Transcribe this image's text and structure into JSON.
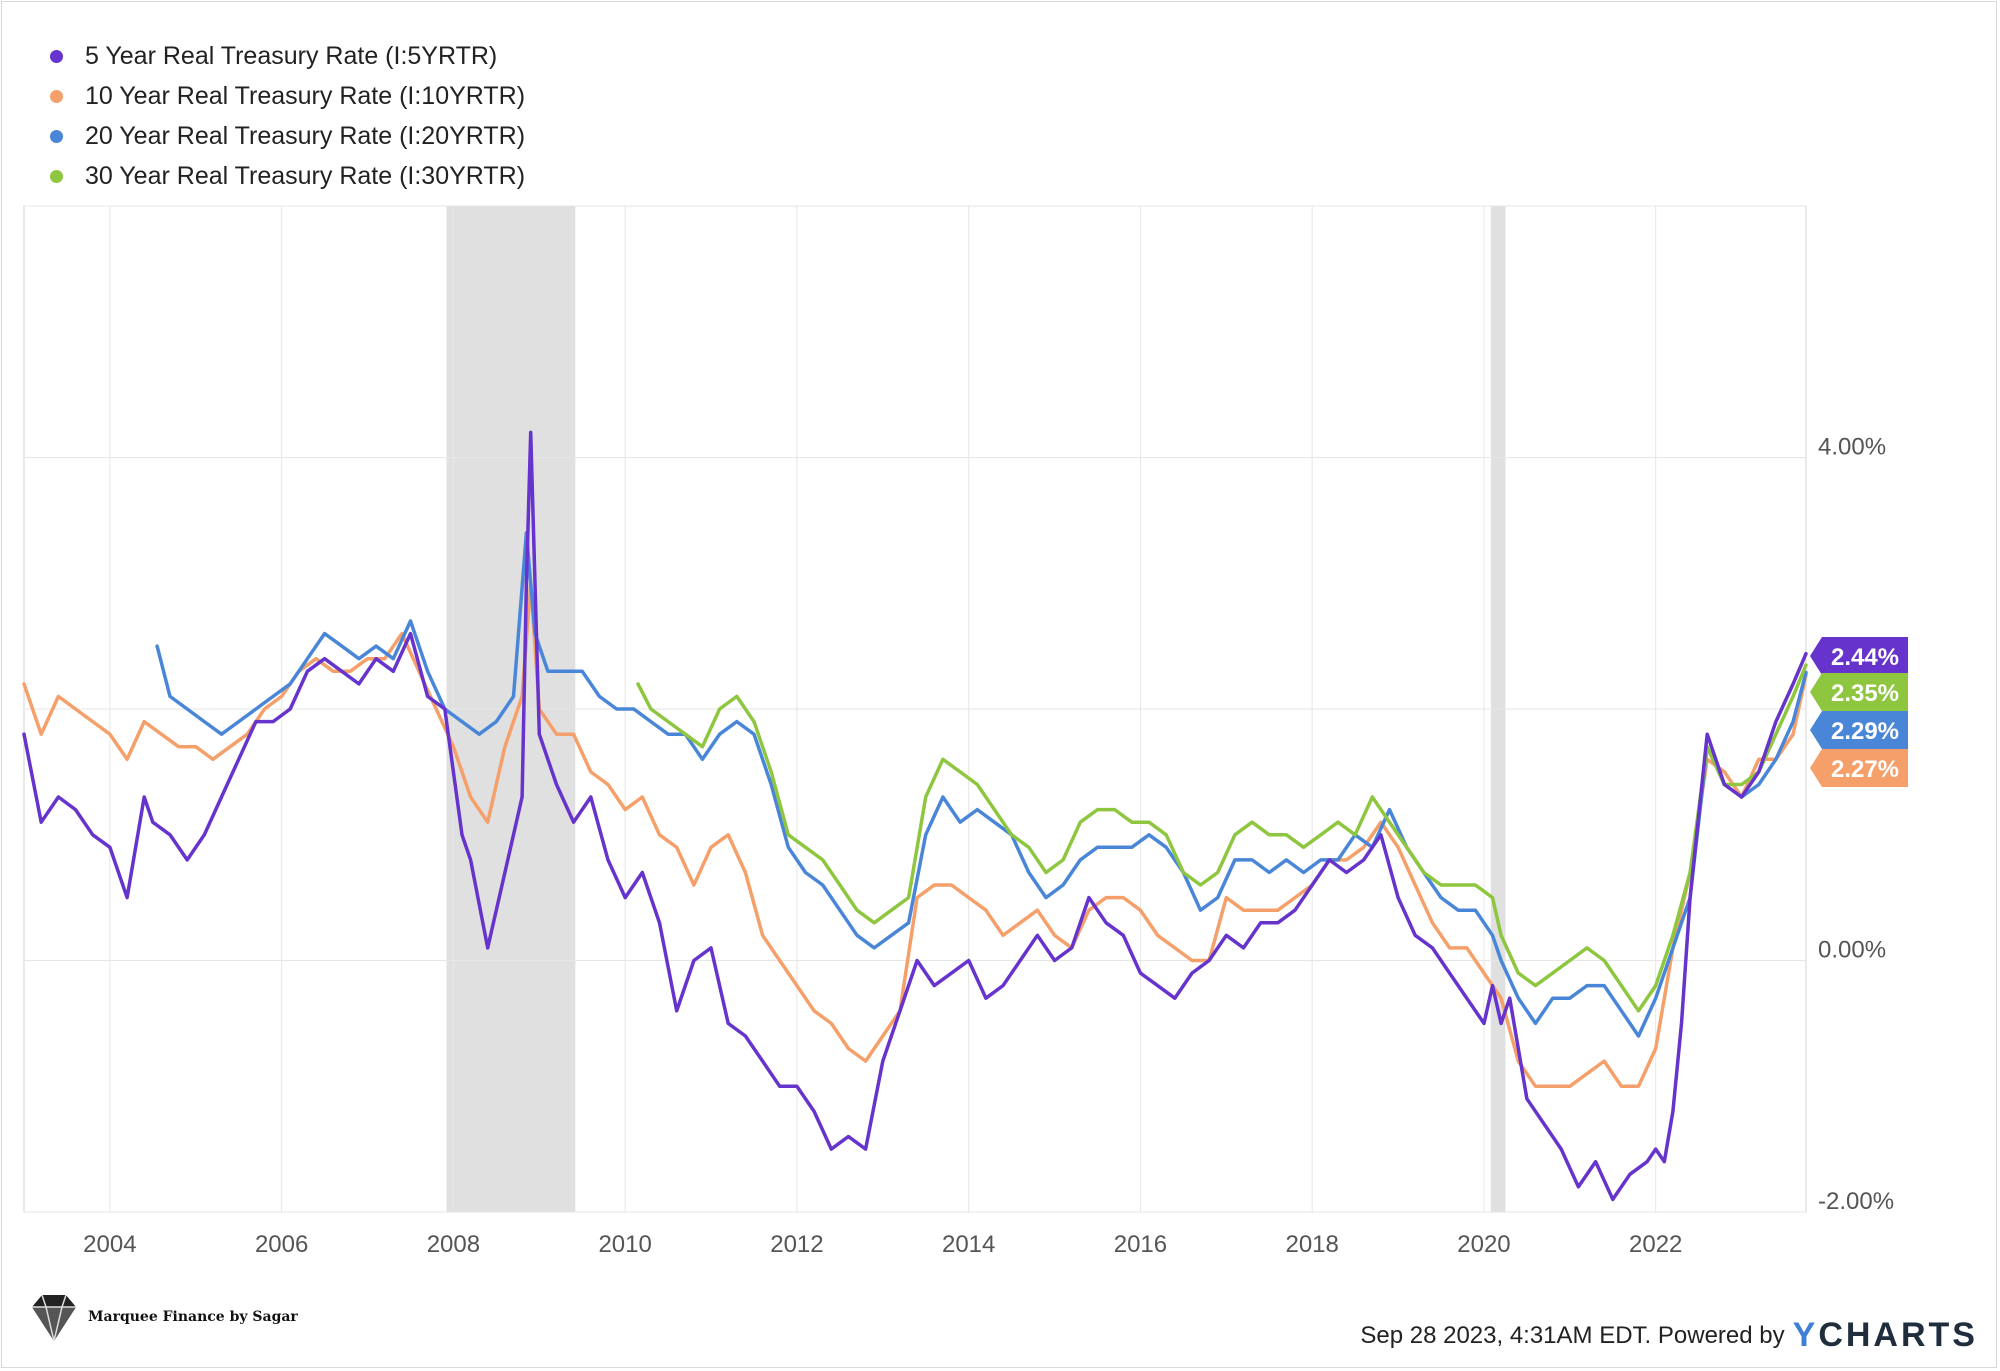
{
  "legend": [
    {
      "label": "5 Year Real Treasury Rate (I:5YRTR)",
      "color": "#6633cc"
    },
    {
      "label": "10 Year Real Treasury Rate (I:10YRTR)",
      "color": "#f5a06a"
    },
    {
      "label": "20 Year Real Treasury Rate (I:20YRTR)",
      "color": "#4a86d8"
    },
    {
      "label": "30 Year Real Treasury Rate (I:30YRTR)",
      "color": "#8ec63f"
    }
  ],
  "footer": {
    "timestamp": "Sep 28 2023, 4:31AM EDT.",
    "powered": "Powered by",
    "brand_y": "Y",
    "brand_rest": "CHARTS"
  },
  "branding": {
    "text": "Marquee Finance by Sagar"
  },
  "chart_data": {
    "type": "line",
    "title": "",
    "xlabel": "",
    "ylabel": "",
    "xlim": [
      2003.0,
      2023.75
    ],
    "ylim": [
      -2.0,
      6.0
    ],
    "x_ticks": [
      2004,
      2006,
      2008,
      2010,
      2012,
      2014,
      2016,
      2018,
      2020,
      2022
    ],
    "x_tick_labels": [
      "2004",
      "2006",
      "2008",
      "2010",
      "2012",
      "2014",
      "2016",
      "2018",
      "2020",
      "2022"
    ],
    "y_ticks": [
      4,
      0,
      -2
    ],
    "y_tick_labels": [
      "4.00%",
      "0.00%",
      "-2.00%"
    ],
    "y_gridlines": [
      6,
      4,
      2,
      0,
      -2
    ],
    "recessions": [
      [
        2007.92,
        2009.42
      ],
      [
        2020.08,
        2020.25
      ]
    ],
    "series": [
      {
        "name": "5 Year Real Treasury Rate (I:5YRTR)",
        "color": "#6633cc",
        "end_label": "2.44%",
        "x": [
          2003.0,
          2003.2,
          2003.4,
          2003.6,
          2003.8,
          2004.0,
          2004.2,
          2004.4,
          2004.5,
          2004.7,
          2004.9,
          2005.1,
          2005.3,
          2005.5,
          2005.7,
          2005.9,
          2006.1,
          2006.3,
          2006.5,
          2006.7,
          2006.9,
          2007.1,
          2007.3,
          2007.5,
          2007.7,
          2007.9,
          2008.1,
          2008.2,
          2008.4,
          2008.6,
          2008.8,
          2008.85,
          2008.9,
          2009.0,
          2009.2,
          2009.4,
          2009.6,
          2009.8,
          2010.0,
          2010.2,
          2010.4,
          2010.6,
          2010.8,
          2011.0,
          2011.2,
          2011.4,
          2011.6,
          2011.8,
          2012.0,
          2012.2,
          2012.4,
          2012.6,
          2012.8,
          2013.0,
          2013.2,
          2013.4,
          2013.6,
          2013.8,
          2014.0,
          2014.2,
          2014.4,
          2014.6,
          2014.8,
          2015.0,
          2015.2,
          2015.4,
          2015.6,
          2015.8,
          2016.0,
          2016.2,
          2016.4,
          2016.6,
          2016.8,
          2017.0,
          2017.2,
          2017.4,
          2017.6,
          2017.8,
          2018.0,
          2018.2,
          2018.4,
          2018.6,
          2018.8,
          2019.0,
          2019.2,
          2019.4,
          2019.6,
          2019.8,
          2020.0,
          2020.1,
          2020.2,
          2020.3,
          2020.5,
          2020.7,
          2020.9,
          2021.1,
          2021.3,
          2021.5,
          2021.7,
          2021.9,
          2022.0,
          2022.1,
          2022.2,
          2022.3,
          2022.4,
          2022.6,
          2022.8,
          2023.0,
          2023.2,
          2023.4,
          2023.6,
          2023.75
        ],
        "values": [
          1.8,
          1.1,
          1.3,
          1.2,
          1.0,
          0.9,
          0.5,
          1.3,
          1.1,
          1.0,
          0.8,
          1.0,
          1.3,
          1.6,
          1.9,
          1.9,
          2.0,
          2.3,
          2.4,
          2.3,
          2.2,
          2.4,
          2.3,
          2.6,
          2.1,
          2.0,
          1.0,
          0.8,
          0.1,
          0.7,
          1.3,
          3.0,
          4.2,
          1.8,
          1.4,
          1.1,
          1.3,
          0.8,
          0.5,
          0.7,
          0.3,
          -0.4,
          0.0,
          0.1,
          -0.5,
          -0.6,
          -0.8,
          -1.0,
          -1.0,
          -1.2,
          -1.5,
          -1.4,
          -1.5,
          -0.8,
          -0.4,
          0.0,
          -0.2,
          -0.1,
          0.0,
          -0.3,
          -0.2,
          0.0,
          0.2,
          0.0,
          0.1,
          0.5,
          0.3,
          0.2,
          -0.1,
          -0.2,
          -0.3,
          -0.1,
          0.0,
          0.2,
          0.1,
          0.3,
          0.3,
          0.4,
          0.6,
          0.8,
          0.7,
          0.8,
          1.0,
          0.5,
          0.2,
          0.1,
          -0.1,
          -0.3,
          -0.5,
          -0.2,
          -0.5,
          -0.3,
          -1.1,
          -1.3,
          -1.5,
          -1.8,
          -1.6,
          -1.9,
          -1.7,
          -1.6,
          -1.5,
          -1.6,
          -1.2,
          -0.5,
          0.5,
          1.8,
          1.4,
          1.3,
          1.5,
          1.9,
          2.2,
          2.44
        ]
      },
      {
        "name": "10 Year Real Treasury Rate (I:10YRTR)",
        "color": "#f5a06a",
        "end_label": "2.27%",
        "x": [
          2003.0,
          2003.2,
          2003.4,
          2003.6,
          2003.8,
          2004.0,
          2004.2,
          2004.4,
          2004.6,
          2004.8,
          2005.0,
          2005.2,
          2005.4,
          2005.6,
          2005.8,
          2006.0,
          2006.2,
          2006.4,
          2006.6,
          2006.8,
          2007.0,
          2007.2,
          2007.4,
          2007.6,
          2007.8,
          2008.0,
          2008.2,
          2008.4,
          2008.6,
          2008.8,
          2008.9,
          2009.0,
          2009.2,
          2009.4,
          2009.6,
          2009.8,
          2010.0,
          2010.2,
          2010.4,
          2010.6,
          2010.8,
          2011.0,
          2011.2,
          2011.4,
          2011.6,
          2011.8,
          2012.0,
          2012.2,
          2012.4,
          2012.6,
          2012.8,
          2013.0,
          2013.2,
          2013.4,
          2013.6,
          2013.8,
          2014.0,
          2014.2,
          2014.4,
          2014.6,
          2014.8,
          2015.0,
          2015.2,
          2015.4,
          2015.6,
          2015.8,
          2016.0,
          2016.2,
          2016.4,
          2016.6,
          2016.8,
          2017.0,
          2017.2,
          2017.4,
          2017.6,
          2017.8,
          2018.0,
          2018.2,
          2018.4,
          2018.6,
          2018.8,
          2019.0,
          2019.2,
          2019.4,
          2019.6,
          2019.8,
          2020.0,
          2020.2,
          2020.4,
          2020.6,
          2020.8,
          2021.0,
          2021.2,
          2021.4,
          2021.6,
          2021.8,
          2022.0,
          2022.2,
          2022.4,
          2022.6,
          2022.8,
          2023.0,
          2023.2,
          2023.4,
          2023.6,
          2023.75
        ],
        "values": [
          2.2,
          1.8,
          2.1,
          2.0,
          1.9,
          1.8,
          1.6,
          1.9,
          1.8,
          1.7,
          1.7,
          1.6,
          1.7,
          1.8,
          2.0,
          2.1,
          2.3,
          2.4,
          2.3,
          2.3,
          2.4,
          2.4,
          2.6,
          2.3,
          2.0,
          1.7,
          1.3,
          1.1,
          1.7,
          2.1,
          3.0,
          2.0,
          1.8,
          1.8,
          1.5,
          1.4,
          1.2,
          1.3,
          1.0,
          0.9,
          0.6,
          0.9,
          1.0,
          0.7,
          0.2,
          0.0,
          -0.2,
          -0.4,
          -0.5,
          -0.7,
          -0.8,
          -0.6,
          -0.4,
          0.5,
          0.6,
          0.6,
          0.5,
          0.4,
          0.2,
          0.3,
          0.4,
          0.2,
          0.1,
          0.4,
          0.5,
          0.5,
          0.4,
          0.2,
          0.1,
          0.0,
          0.0,
          0.5,
          0.4,
          0.4,
          0.4,
          0.5,
          0.6,
          0.8,
          0.8,
          0.9,
          1.1,
          0.9,
          0.6,
          0.3,
          0.1,
          0.1,
          -0.1,
          -0.3,
          -0.8,
          -1.0,
          -1.0,
          -1.0,
          -0.9,
          -0.8,
          -1.0,
          -1.0,
          -0.7,
          0.1,
          0.7,
          1.6,
          1.5,
          1.3,
          1.6,
          1.6,
          1.8,
          2.27
        ]
      },
      {
        "name": "20 Year Real Treasury Rate (I:20YRTR)",
        "color": "#4a86d8",
        "end_label": "2.29%",
        "x": [
          2004.55,
          2004.7,
          2004.9,
          2005.1,
          2005.3,
          2005.5,
          2005.7,
          2005.9,
          2006.1,
          2006.3,
          2006.5,
          2006.7,
          2006.9,
          2007.1,
          2007.3,
          2007.5,
          2007.7,
          2007.9,
          2008.1,
          2008.3,
          2008.5,
          2008.7,
          2008.85,
          2008.95,
          2009.1,
          2009.3,
          2009.5,
          2009.7,
          2009.9,
          2010.1,
          2010.3,
          2010.5,
          2010.7,
          2010.9,
          2011.1,
          2011.3,
          2011.5,
          2011.7,
          2011.9,
          2012.1,
          2012.3,
          2012.5,
          2012.7,
          2012.9,
          2013.1,
          2013.3,
          2013.5,
          2013.7,
          2013.9,
          2014.1,
          2014.3,
          2014.5,
          2014.7,
          2014.9,
          2015.1,
          2015.3,
          2015.5,
          2015.7,
          2015.9,
          2016.1,
          2016.3,
          2016.5,
          2016.7,
          2016.9,
          2017.1,
          2017.3,
          2017.5,
          2017.7,
          2017.9,
          2018.1,
          2018.3,
          2018.5,
          2018.7,
          2018.9,
          2019.1,
          2019.3,
          2019.5,
          2019.7,
          2019.9,
          2020.1,
          2020.2,
          2020.4,
          2020.6,
          2020.8,
          2021.0,
          2021.2,
          2021.4,
          2021.6,
          2021.8,
          2022.0,
          2022.2,
          2022.4,
          2022.6,
          2022.8,
          2023.0,
          2023.2,
          2023.4,
          2023.6,
          2023.75
        ],
        "values": [
          2.5,
          2.1,
          2.0,
          1.9,
          1.8,
          1.9,
          2.0,
          2.1,
          2.2,
          2.4,
          2.6,
          2.5,
          2.4,
          2.5,
          2.4,
          2.7,
          2.3,
          2.0,
          1.9,
          1.8,
          1.9,
          2.1,
          3.4,
          2.6,
          2.3,
          2.3,
          2.3,
          2.1,
          2.0,
          2.0,
          1.9,
          1.8,
          1.8,
          1.6,
          1.8,
          1.9,
          1.8,
          1.4,
          0.9,
          0.7,
          0.6,
          0.4,
          0.2,
          0.1,
          0.2,
          0.3,
          1.0,
          1.3,
          1.1,
          1.2,
          1.1,
          1.0,
          0.7,
          0.5,
          0.6,
          0.8,
          0.9,
          0.9,
          0.9,
          1.0,
          0.9,
          0.7,
          0.4,
          0.5,
          0.8,
          0.8,
          0.7,
          0.8,
          0.7,
          0.8,
          0.8,
          1.0,
          0.9,
          1.2,
          0.9,
          0.7,
          0.5,
          0.4,
          0.4,
          0.2,
          0.0,
          -0.3,
          -0.5,
          -0.3,
          -0.3,
          -0.2,
          -0.2,
          -0.4,
          -0.6,
          -0.3,
          0.1,
          0.5,
          1.7,
          1.4,
          1.3,
          1.4,
          1.6,
          1.9,
          2.29
        ]
      },
      {
        "name": "30 Year Real Treasury Rate (I:30YRTR)",
        "color": "#8ec63f",
        "end_label": "2.35%",
        "x": [
          2010.15,
          2010.3,
          2010.5,
          2010.7,
          2010.9,
          2011.1,
          2011.3,
          2011.5,
          2011.7,
          2011.9,
          2012.1,
          2012.3,
          2012.5,
          2012.7,
          2012.9,
          2013.1,
          2013.3,
          2013.5,
          2013.7,
          2013.9,
          2014.1,
          2014.3,
          2014.5,
          2014.7,
          2014.9,
          2015.1,
          2015.3,
          2015.5,
          2015.7,
          2015.9,
          2016.1,
          2016.3,
          2016.5,
          2016.7,
          2016.9,
          2017.1,
          2017.3,
          2017.5,
          2017.7,
          2017.9,
          2018.1,
          2018.3,
          2018.5,
          2018.7,
          2018.9,
          2019.1,
          2019.3,
          2019.5,
          2019.7,
          2019.9,
          2020.1,
          2020.2,
          2020.4,
          2020.6,
          2020.8,
          2021.0,
          2021.2,
          2021.4,
          2021.6,
          2021.8,
          2022.0,
          2022.2,
          2022.4,
          2022.6,
          2022.8,
          2023.0,
          2023.2,
          2023.4,
          2023.6,
          2023.75
        ],
        "values": [
          2.2,
          2.0,
          1.9,
          1.8,
          1.7,
          2.0,
          2.1,
          1.9,
          1.5,
          1.0,
          0.9,
          0.8,
          0.6,
          0.4,
          0.3,
          0.4,
          0.5,
          1.3,
          1.6,
          1.5,
          1.4,
          1.2,
          1.0,
          0.9,
          0.7,
          0.8,
          1.1,
          1.2,
          1.2,
          1.1,
          1.1,
          1.0,
          0.7,
          0.6,
          0.7,
          1.0,
          1.1,
          1.0,
          1.0,
          0.9,
          1.0,
          1.1,
          1.0,
          1.3,
          1.1,
          0.9,
          0.7,
          0.6,
          0.6,
          0.6,
          0.5,
          0.2,
          -0.1,
          -0.2,
          -0.1,
          0.0,
          0.1,
          0.0,
          -0.2,
          -0.4,
          -0.2,
          0.2,
          0.7,
          1.7,
          1.4,
          1.4,
          1.5,
          1.8,
          2.1,
          2.35
        ]
      }
    ]
  }
}
